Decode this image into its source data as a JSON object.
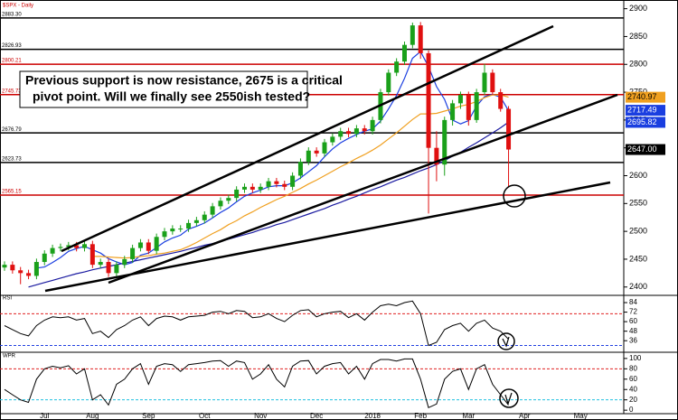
{
  "chart_data": [
    {
      "type": "candlestick",
      "title": "$SPX - Daily",
      "categories": [
        null,
        null,
        null,
        null,
        null,
        "Jul",
        null,
        null,
        null,
        null,
        null,
        "Aug",
        null,
        null,
        null,
        null,
        null,
        null,
        "Sep",
        null,
        null,
        null,
        null,
        null,
        null,
        "Oct",
        null,
        null,
        null,
        null,
        null,
        null,
        "Nov",
        null,
        null,
        null,
        null,
        null,
        null,
        "Dec",
        null,
        null,
        null,
        null,
        null,
        null,
        "2018",
        null,
        null,
        null,
        null,
        null,
        "Feb",
        null,
        null,
        null,
        null,
        null,
        "Mar",
        null,
        null,
        null,
        null,
        null,
        null,
        "Apr",
        null,
        null,
        null,
        null,
        null,
        null,
        "May"
      ],
      "open": [
        2435,
        2440,
        2430,
        2425,
        2420,
        2445,
        2460,
        2470,
        2472,
        2475,
        2470,
        2477,
        2440,
        2445,
        2425,
        2440,
        2450,
        2470,
        2480,
        2465,
        2490,
        2500,
        2505,
        2505,
        2515,
        2520,
        2530,
        2545,
        2555,
        2560,
        2575,
        2580,
        2575,
        2580,
        2590,
        2585,
        2580,
        2600,
        2625,
        2645,
        2640,
        2660,
        2670,
        2680,
        2675,
        2685,
        2680,
        2700,
        2750,
        2785,
        2805,
        2835,
        2870,
        2820,
        2650,
        2620,
        2700,
        2730,
        2745,
        2700,
        2750,
        2785,
        2750,
        2720,
        null,
        null,
        null,
        null,
        null,
        null,
        null,
        null,
        null
      ],
      "high": [
        2446,
        2446,
        2436,
        2431,
        2451,
        2466,
        2476,
        2478,
        2481,
        2481,
        2483,
        2483,
        2451,
        2451,
        2446,
        2456,
        2476,
        2486,
        2486,
        2496,
        2506,
        2511,
        2511,
        2521,
        2526,
        2536,
        2551,
        2561,
        2566,
        2581,
        2586,
        2586,
        2586,
        2596,
        2596,
        2591,
        2606,
        2631,
        2651,
        2651,
        2666,
        2676,
        2686,
        2686,
        2691,
        2691,
        2706,
        2756,
        2791,
        2811,
        2841,
        2875,
        2876,
        2825,
        2680,
        2706,
        2736,
        2751,
        2751,
        2756,
        2801,
        2791,
        2756,
        2725,
        null,
        null,
        null,
        null,
        null,
        null,
        null,
        null,
        null
      ],
      "low": [
        2429,
        2424,
        2405,
        2414,
        2414,
        2439,
        2454,
        2464,
        2466,
        2464,
        2464,
        2434,
        2434,
        2418,
        2419,
        2434,
        2444,
        2464,
        2459,
        2459,
        2484,
        2494,
        2499,
        2499,
        2509,
        2514,
        2524,
        2539,
        2549,
        2554,
        2569,
        2569,
        2569,
        2574,
        2579,
        2574,
        2574,
        2594,
        2619,
        2634,
        2634,
        2654,
        2664,
        2669,
        2669,
        2674,
        2674,
        2694,
        2744,
        2779,
        2799,
        2829,
        2810,
        2532,
        2590,
        2600,
        2690,
        2720,
        2690,
        2695,
        2745,
        2745,
        2715,
        2580,
        null,
        null,
        null,
        null,
        null,
        null,
        null,
        null,
        null
      ],
      "close": [
        2440,
        2430,
        2425,
        2420,
        2445,
        2460,
        2470,
        2472,
        2475,
        2470,
        2477,
        2440,
        2445,
        2425,
        2440,
        2450,
        2470,
        2480,
        2465,
        2490,
        2500,
        2505,
        2505,
        2515,
        2520,
        2530,
        2545,
        2555,
        2560,
        2575,
        2580,
        2575,
        2580,
        2590,
        2585,
        2580,
        2600,
        2625,
        2645,
        2640,
        2660,
        2670,
        2680,
        2675,
        2685,
        2680,
        2700,
        2750,
        2785,
        2805,
        2835,
        2870,
        2820,
        2650,
        2620,
        2700,
        2730,
        2745,
        2700,
        2750,
        2785,
        2750,
        2720,
        2647,
        null,
        null,
        null,
        null,
        null,
        null,
        null,
        null,
        null
      ],
      "up_color": "#1aa01a",
      "down_color": "#e01010",
      "series": [
        {
          "color": "#1a3ee0",
          "values": [
            null,
            null,
            null,
            null,
            2434,
            2436,
            2444,
            2453,
            2464,
            2469,
            2473,
            2467,
            2461,
            2451,
            2445,
            2440,
            2444,
            2457,
            2461,
            2471,
            2481,
            2488,
            2493,
            2504,
            2509,
            2515,
            2524,
            2534,
            2542,
            2553,
            2563,
            2569,
            2574,
            2580,
            2582,
            2582,
            2587,
            2596,
            2607,
            2618,
            2634,
            2648,
            2659,
            2667,
            2674,
            2680,
            2684,
            2698,
            2720,
            2744,
            2775,
            2811,
            2823,
            2796,
            2760,
            2737,
            2700,
            2693,
            2699,
            2725,
            2742,
            2746,
            2741,
            2717,
            null,
            null,
            null,
            null,
            null,
            null,
            null,
            null,
            null
          ]
        },
        {
          "color": "#f0a020",
          "values": [
            null,
            null,
            null,
            null,
            null,
            null,
            null,
            null,
            null,
            null,
            null,
            2455,
            2455,
            2454,
            2453,
            2452,
            2453,
            2455,
            2456,
            2459,
            2461,
            2464,
            2467,
            2473,
            2480,
            2488,
            2496,
            2503,
            2512,
            2519,
            2528,
            2535,
            2543,
            2550,
            2557,
            2563,
            2570,
            2577,
            2585,
            2592,
            2600,
            2608,
            2616,
            2623,
            2631,
            2638,
            2646,
            2655,
            2666,
            2677,
            2689,
            2701,
            2711,
            2711,
            2712,
            2716,
            2720,
            2725,
            2728,
            2733,
            2740,
            2745,
            2745,
            2741,
            null,
            null,
            null,
            null,
            null,
            null,
            null,
            null,
            null
          ]
        },
        {
          "color": "#1a1aa0",
          "values": [
            null,
            null,
            null,
            2400,
            2404,
            2408,
            2412,
            2416,
            2420,
            2424,
            2427,
            2431,
            2434,
            2437,
            2440,
            2443,
            2446,
            2449,
            2452,
            2455,
            2458,
            2461,
            2464,
            2468,
            2471,
            2475,
            2478,
            2482,
            2486,
            2490,
            2494,
            2498,
            2503,
            2507,
            2512,
            2516,
            2521,
            2526,
            2531,
            2536,
            2541,
            2547,
            2552,
            2558,
            2563,
            2569,
            2575,
            2580,
            2586,
            2592,
            2597,
            2603,
            2609,
            2614,
            2620,
            2627,
            2635,
            2642,
            2651,
            2659,
            2668,
            2677,
            2686,
            2696,
            null,
            null,
            null,
            null,
            null,
            null,
            null,
            null,
            null
          ]
        }
      ],
      "levels": [
        {
          "value": 2883.3,
          "label": "2883.30",
          "color": "#000000"
        },
        {
          "value": 2826.93,
          "label": "2826.93",
          "color": "#000000"
        },
        {
          "value": 2800.21,
          "label": "2800.21",
          "color": "#cc0000"
        },
        {
          "value": 2745.73,
          "label": "2745.73",
          "color": "#cc0000"
        },
        {
          "value": 2676.79,
          "label": "2676.79",
          "color": "#000000"
        },
        {
          "value": 2623.73,
          "label": "2623.73",
          "color": "#000000"
        },
        {
          "value": 2565.15,
          "label": "2565.15",
          "color": "#cc0000"
        }
      ],
      "tags": {
        "values": [
          2740.97,
          2717.49,
          2695.82,
          2647
        ],
        "value_labels": [
          "2740.97",
          "2717.49",
          "2695.82",
          "2647.00"
        ],
        "colors": [
          "#f0a020",
          "#1a3ee0",
          "#1a3ee0",
          "#000000"
        ]
      },
      "annotation": [
        "Previous support is now resistance, 2675 is a critical",
        "pivot point.  Will we finally see 2550ish tested?"
      ],
      "ylim": [
        2385,
        2914
      ],
      "yticks": [
        2400,
        2450,
        2500,
        2550,
        2600,
        2650,
        2700,
        2750,
        2800,
        2850,
        2900
      ]
    },
    {
      "type": "line",
      "label": "RSI",
      "color": "#000000",
      "values": [
        55,
        50,
        45,
        42,
        55,
        62,
        66,
        65,
        66,
        62,
        64,
        45,
        48,
        40,
        50,
        55,
        62,
        66,
        55,
        64,
        67,
        66,
        62,
        66,
        67,
        68,
        72,
        73,
        70,
        74,
        73,
        65,
        66,
        70,
        64,
        60,
        68,
        74,
        75,
        66,
        70,
        72,
        73,
        65,
        70,
        62,
        72,
        80,
        82,
        80,
        84,
        86,
        70,
        30,
        34,
        50,
        55,
        58,
        48,
        58,
        62,
        52,
        48,
        38,
        null,
        null,
        null,
        null,
        null,
        null,
        null,
        null,
        null
      ],
      "levels": [
        {
          "value": 70,
          "color": "#e02020"
        },
        {
          "value": 30,
          "color": "#2040e0"
        }
      ],
      "ylim": [
        26,
        92
      ],
      "yticks": [
        36,
        48,
        60,
        72,
        84
      ]
    },
    {
      "type": "line",
      "label": "WPR",
      "color": "#000000",
      "values": [
        40,
        30,
        20,
        15,
        60,
        80,
        85,
        82,
        86,
        70,
        80,
        20,
        30,
        10,
        50,
        60,
        80,
        90,
        50,
        85,
        90,
        88,
        75,
        88,
        90,
        92,
        95,
        96,
        85,
        95,
        92,
        60,
        70,
        88,
        60,
        45,
        85,
        95,
        96,
        70,
        85,
        90,
        92,
        70,
        85,
        60,
        90,
        98,
        98,
        95,
        99,
        99,
        60,
        5,
        12,
        60,
        75,
        80,
        40,
        80,
        88,
        50,
        30,
        10,
        null,
        null,
        null,
        null,
        null,
        null,
        null,
        null,
        null
      ],
      "levels": [
        {
          "value": 80,
          "color": "#e02020"
        },
        {
          "value": 20,
          "color": "#20c0e0"
        }
      ],
      "ylim": [
        -5,
        105
      ],
      "yticks": [
        0,
        20,
        40,
        60,
        80,
        100
      ]
    }
  ]
}
